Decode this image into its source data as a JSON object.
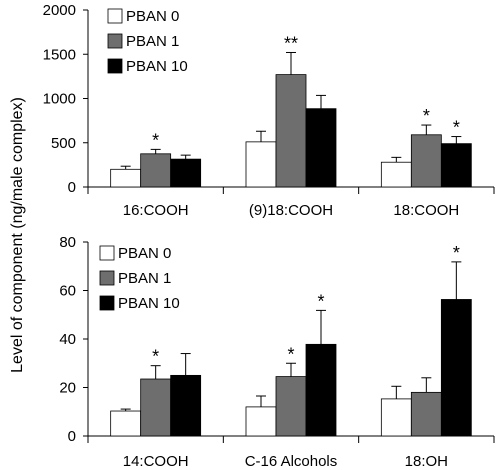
{
  "ylabel": "Level of component (ng/male complex)",
  "colors": {
    "PBAN 0": "#ffffff",
    "PBAN 1": "#6e6e6e",
    "PBAN 10": "#000000"
  },
  "chart_data": [
    {
      "type": "bar",
      "categories": [
        "16:COOH",
        "(9)18:COOH",
        "18:COOH"
      ],
      "ylim": [
        0,
        2000
      ],
      "yticks": [
        "0",
        "500",
        "1000",
        "1500",
        "2000"
      ],
      "legend": "top-left",
      "series": [
        {
          "name": "PBAN 0",
          "values": [
            200,
            510,
            280
          ],
          "errors": [
            35,
            120,
            55
          ]
        },
        {
          "name": "PBAN 1",
          "values": [
            375,
            1270,
            590
          ],
          "errors": [
            50,
            250,
            110
          ]
        },
        {
          "name": "PBAN 10",
          "values": [
            315,
            885,
            490
          ],
          "errors": [
            45,
            150,
            80
          ]
        }
      ],
      "annotations": [
        {
          "category": 0,
          "series": 1,
          "text": "*"
        },
        {
          "category": 1,
          "series": 1,
          "text": "**"
        },
        {
          "category": 2,
          "series": 1,
          "text": "*"
        },
        {
          "category": 2,
          "series": 2,
          "text": "*"
        }
      ]
    },
    {
      "type": "bar",
      "categories": [
        "14:COOH",
        "C-16 Alcohols",
        "18:OH"
      ],
      "ylim": [
        0,
        80
      ],
      "yticks": [
        "0",
        "20",
        "40",
        "60",
        "80"
      ],
      "legend": "top-left",
      "series": [
        {
          "name": "PBAN 0",
          "values": [
            10.3,
            12,
            15.3
          ],
          "errors": [
            0.8,
            4.5,
            5.2
          ]
        },
        {
          "name": "PBAN 1",
          "values": [
            23.5,
            24.5,
            18
          ],
          "errors": [
            5.5,
            5.5,
            6
          ]
        },
        {
          "name": "PBAN 10",
          "values": [
            25,
            37.8,
            56.3
          ],
          "errors": [
            9,
            14,
            15.5
          ]
        }
      ],
      "annotations": [
        {
          "category": 0,
          "series": 1,
          "text": "*"
        },
        {
          "category": 1,
          "series": 1,
          "text": "*"
        },
        {
          "category": 1,
          "series": 2,
          "text": "*"
        },
        {
          "category": 2,
          "series": 2,
          "text": "*"
        }
      ]
    }
  ]
}
